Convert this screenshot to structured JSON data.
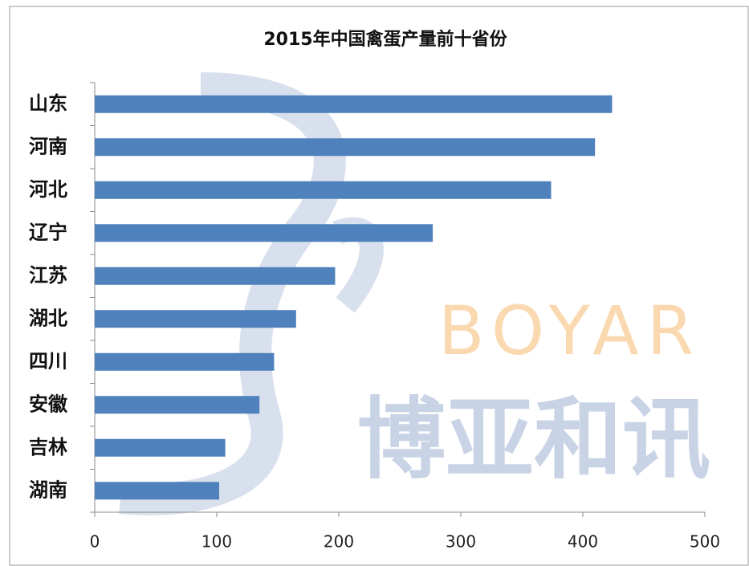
{
  "chart_data": {
    "type": "bar",
    "orientation": "horizontal",
    "title": "2015年中国禽蛋产量前十省份",
    "categories": [
      "山东",
      "河南",
      "河北",
      "辽宁",
      "江苏",
      "湖北",
      "四川",
      "安徽",
      "吉林",
      "湖南"
    ],
    "values": [
      424,
      410,
      374,
      277,
      197,
      165,
      147,
      135,
      107,
      102
    ],
    "color": "#4f81bd",
    "xlim": [
      0,
      500
    ],
    "xticks": [
      0,
      100,
      200,
      300,
      400,
      500
    ],
    "watermark": [
      "BOYAR",
      "博亚和讯"
    ]
  }
}
